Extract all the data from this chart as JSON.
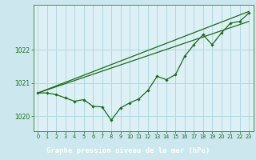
{
  "background_color": "#cce8ee",
  "plot_bg_color": "#ddf0f5",
  "grid_color": "#aad4dc",
  "line_color": "#1a6b1a",
  "xlabel": "Graphe pression niveau de la mer (hPa)",
  "xlabel_bg": "#7a9a7a",
  "ylim": [
    1019.55,
    1023.35
  ],
  "xlim": [
    -0.5,
    23.5
  ],
  "yticks": [
    1020,
    1021,
    1022
  ],
  "xticks": [
    0,
    1,
    2,
    3,
    4,
    5,
    6,
    7,
    8,
    9,
    10,
    11,
    12,
    13,
    14,
    15,
    16,
    17,
    18,
    19,
    20,
    21,
    22,
    23
  ],
  "line1_x": [
    0,
    1,
    2,
    3,
    4,
    5,
    6,
    7,
    8,
    9,
    10,
    11,
    12,
    13,
    14,
    15,
    16,
    17,
    18,
    19,
    20,
    21,
    22,
    23
  ],
  "line1_y": [
    1020.7,
    1020.7,
    1020.65,
    1020.55,
    1020.45,
    1020.5,
    1020.3,
    1020.28,
    1019.88,
    1020.25,
    1020.4,
    1020.52,
    1020.78,
    1021.2,
    1021.1,
    1021.25,
    1021.8,
    1022.15,
    1022.45,
    1022.15,
    1022.5,
    1022.8,
    1022.85,
    1023.1
  ],
  "line2_x": [
    0,
    23
  ],
  "line2_y": [
    1020.7,
    1023.15
  ],
  "line3_x": [
    0,
    23
  ],
  "line3_y": [
    1020.7,
    1022.85
  ]
}
